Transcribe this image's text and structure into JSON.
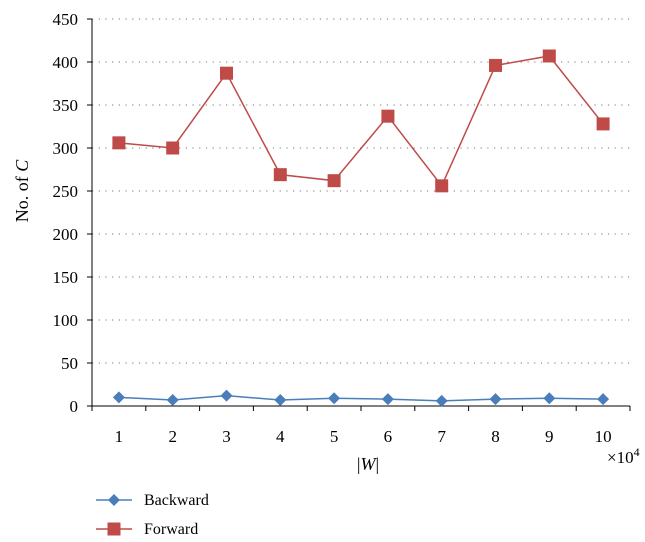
{
  "chart_data": {
    "type": "line",
    "categories": [
      "1",
      "2",
      "3",
      "4",
      "5",
      "6",
      "7",
      "8",
      "9",
      "10"
    ],
    "xlabel_parts": [
      "|",
      "W",
      "|"
    ],
    "x_multiplier_parts": [
      "×10",
      "4"
    ],
    "ylabel_parts": [
      "No. of ",
      "C"
    ],
    "ylim": [
      0,
      450
    ],
    "yticks": [
      0,
      50,
      100,
      150,
      200,
      250,
      300,
      350,
      400,
      450
    ],
    "grid": "horizontal dotted",
    "legend_position": "bottom-left",
    "series": [
      {
        "name": "Backward",
        "color": "#4a7ebb",
        "marker": "diamond",
        "values": [
          10,
          7,
          12,
          7,
          9,
          8,
          6,
          8,
          9,
          8
        ]
      },
      {
        "name": "Forward",
        "color": "#be4b48",
        "marker": "square",
        "values": [
          306,
          300,
          387,
          269,
          262,
          337,
          256,
          396,
          407,
          328
        ]
      }
    ]
  }
}
